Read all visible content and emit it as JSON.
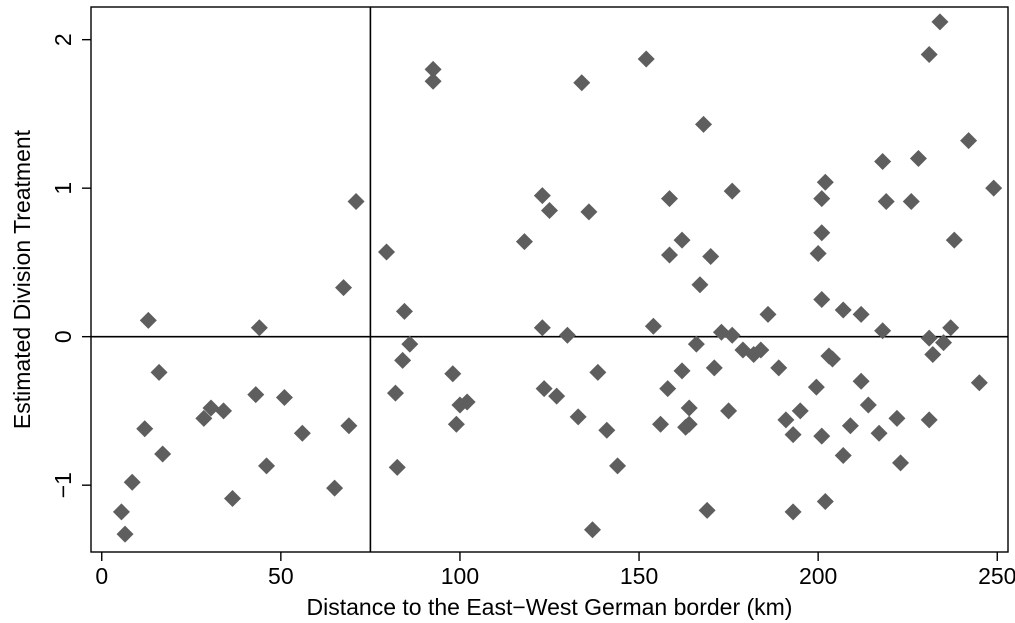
{
  "chart_data": {
    "type": "scatter",
    "title": "",
    "xlabel": "Distance to the East−West German border (km)",
    "ylabel": "Estimated Division Treatment",
    "xlim": [
      -3,
      253
    ],
    "ylim": [
      -1.45,
      2.22
    ],
    "xticks": [
      0,
      50,
      100,
      150,
      200,
      250
    ],
    "xtick_labels": [
      "0",
      "50",
      "100",
      "150",
      "200",
      "250"
    ],
    "yticks": [
      -1,
      0,
      1,
      2
    ],
    "ytick_labels": [
      "−1",
      "0",
      "1",
      "2"
    ],
    "grid": false,
    "legend": "none",
    "reference_lines": {
      "vertical_x": 75,
      "horizontal_y": 0
    },
    "marker": {
      "shape": "diamond",
      "color": "#5e5e5e"
    },
    "line_color": "#000000",
    "series": [
      {
        "points": [
          [
            5.5,
            -1.18
          ],
          [
            6.5,
            -1.33
          ],
          [
            8.5,
            -0.98
          ],
          [
            12,
            -0.62
          ],
          [
            13,
            0.11
          ],
          [
            16,
            -0.24
          ],
          [
            17,
            -0.79
          ],
          [
            28.5,
            -0.55
          ],
          [
            30.5,
            -0.48
          ],
          [
            34,
            -0.5
          ],
          [
            36.5,
            -1.09
          ],
          [
            43,
            -0.39
          ],
          [
            44,
            0.06
          ],
          [
            46,
            -0.87
          ],
          [
            51,
            -0.41
          ],
          [
            56,
            -0.65
          ],
          [
            65,
            -1.02
          ],
          [
            67.5,
            0.33
          ],
          [
            69,
            -0.6
          ],
          [
            71,
            0.91
          ],
          [
            79.5,
            0.57
          ],
          [
            82,
            -0.38
          ],
          [
            82.5,
            -0.88
          ],
          [
            84,
            -0.16
          ],
          [
            84.5,
            0.17
          ],
          [
            86,
            -0.05
          ],
          [
            92.5,
            1.8
          ],
          [
            92.5,
            1.72
          ],
          [
            98,
            -0.25
          ],
          [
            99,
            -0.59
          ],
          [
            100,
            -0.46
          ],
          [
            102,
            -0.44
          ],
          [
            118,
            0.64
          ],
          [
            123,
            0.95
          ],
          [
            123,
            0.06
          ],
          [
            123.5,
            -0.35
          ],
          [
            125,
            0.85
          ],
          [
            127,
            -0.4
          ],
          [
            130,
            0.01
          ],
          [
            133,
            -0.54
          ],
          [
            134,
            1.71
          ],
          [
            136,
            0.84
          ],
          [
            137,
            -1.3
          ],
          [
            138.5,
            -0.24
          ],
          [
            141,
            -0.63
          ],
          [
            144,
            -0.87
          ],
          [
            152,
            1.87
          ],
          [
            154,
            0.07
          ],
          [
            156,
            -0.59
          ],
          [
            158,
            -0.35
          ],
          [
            158.5,
            0.93
          ],
          [
            158.5,
            0.55
          ],
          [
            162,
            0.65
          ],
          [
            162,
            -0.23
          ],
          [
            163,
            -0.61
          ],
          [
            164,
            -0.48
          ],
          [
            164,
            -0.59
          ],
          [
            166,
            -0.05
          ],
          [
            167,
            0.35
          ],
          [
            168,
            1.43
          ],
          [
            169,
            -1.17
          ],
          [
            170,
            0.54
          ],
          [
            171,
            -0.21
          ],
          [
            173,
            0.03
          ],
          [
            175,
            -0.5
          ],
          [
            176,
            0.98
          ],
          [
            176,
            0.01
          ],
          [
            179,
            -0.09
          ],
          [
            182,
            -0.12
          ],
          [
            184,
            -0.09
          ],
          [
            186,
            0.15
          ],
          [
            189,
            -0.21
          ],
          [
            191,
            -0.56
          ],
          [
            193,
            -0.66
          ],
          [
            193,
            -1.18
          ],
          [
            195,
            -0.5
          ],
          [
            199.5,
            -0.34
          ],
          [
            200,
            0.56
          ],
          [
            201,
            0.93
          ],
          [
            201,
            0.7
          ],
          [
            201,
            0.25
          ],
          [
            201,
            -0.67
          ],
          [
            202,
            1.04
          ],
          [
            202,
            -1.11
          ],
          [
            203,
            -0.13
          ],
          [
            204,
            -0.15
          ],
          [
            207,
            0.18
          ],
          [
            207,
            -0.8
          ],
          [
            209,
            -0.6
          ],
          [
            212,
            0.15
          ],
          [
            212,
            -0.3
          ],
          [
            214,
            -0.46
          ],
          [
            217,
            -0.65
          ],
          [
            218,
            1.18
          ],
          [
            218,
            0.04
          ],
          [
            219,
            0.91
          ],
          [
            222,
            -0.55
          ],
          [
            223,
            -0.85
          ],
          [
            226,
            0.91
          ],
          [
            228,
            1.2
          ],
          [
            231,
            1.9
          ],
          [
            231,
            -0.01
          ],
          [
            231,
            -0.56
          ],
          [
            232,
            -0.12
          ],
          [
            234,
            2.12
          ],
          [
            235,
            -0.04
          ],
          [
            237,
            0.06
          ],
          [
            238,
            0.65
          ],
          [
            242,
            1.32
          ],
          [
            245,
            -0.31
          ],
          [
            249,
            1.0
          ]
        ]
      }
    ]
  }
}
